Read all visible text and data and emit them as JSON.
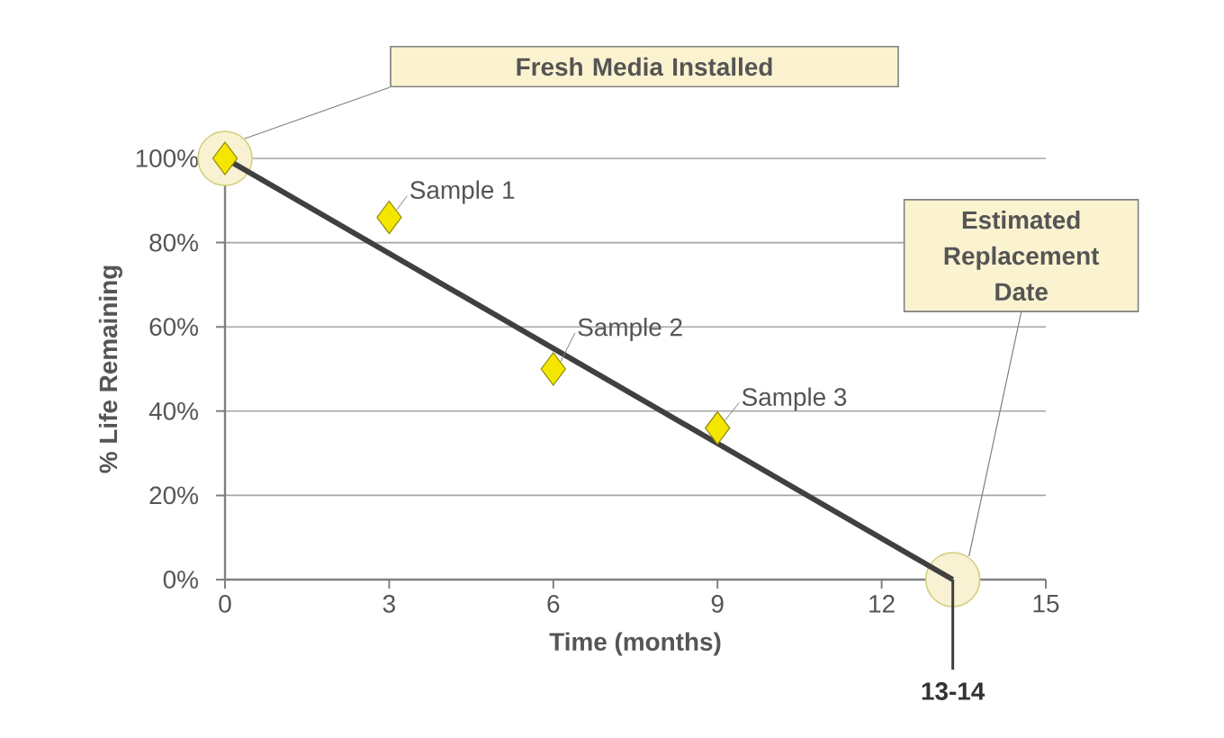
{
  "chart_data": {
    "type": "scatter",
    "xlabel": "Time (months)",
    "ylabel": "% Life Remaining",
    "xlim": [
      0,
      15
    ],
    "xticks": [
      0,
      3,
      6,
      9,
      12,
      15
    ],
    "ylim": [
      0,
      100
    ],
    "yticks": [
      {
        "value": 0,
        "label": "0%"
      },
      {
        "value": 20,
        "label": "20%"
      },
      {
        "value": 40,
        "label": "40%"
      },
      {
        "value": 60,
        "label": "60%"
      },
      {
        "value": 80,
        "label": "80%"
      },
      {
        "value": 100,
        "label": "100%"
      }
    ],
    "grid": "y",
    "marker": "diamond",
    "series": [
      {
        "type": "line",
        "color": "#404040",
        "x": [
          0,
          13.3
        ],
        "values": [
          100,
          0
        ],
        "marker": "none",
        "line_style": "solid"
      },
      {
        "type": "scatter",
        "color": "#f5e600",
        "x": [
          0,
          3,
          6,
          9
        ],
        "values": [
          100,
          86,
          50,
          36
        ]
      }
    ],
    "annotations": [
      "Fresh Media Installed",
      "Estimated Replacement Date",
      {
        "text": "Sample 1",
        "x": 3,
        "y": 86
      },
      {
        "text": "Sample 2",
        "x": 6,
        "y": 50
      },
      {
        "text": "Sample 3",
        "x": 9,
        "y": 36
      },
      {
        "text": "13-14",
        "x": 13.3,
        "y": 0
      }
    ]
  }
}
